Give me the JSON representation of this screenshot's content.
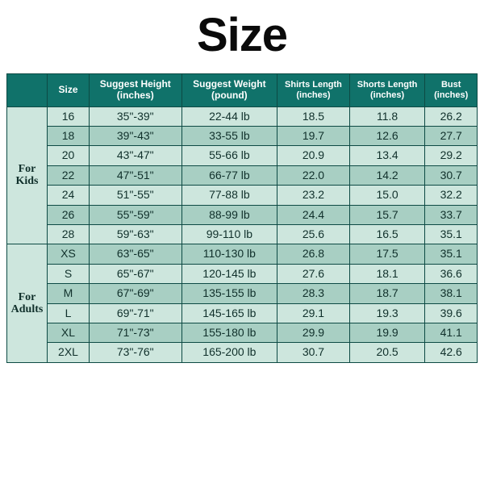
{
  "title": "Size",
  "title_fontsize": 58,
  "title_color": "#0a0a0a",
  "colors": {
    "header_bg": "#10726a",
    "header_text": "#ffffff",
    "row_a": "#cde6dd",
    "row_b": "#a8cfc3",
    "border": "#0d4a44",
    "group_bg": "#cde6dd",
    "text": "#10302b"
  },
  "fontsize": {
    "header": 12,
    "header_small": 11,
    "body": 14,
    "group": 14
  },
  "columns": [
    {
      "label_line1": "Size",
      "label_line2": ""
    },
    {
      "label_line1": "Suggest Height",
      "label_line2": "(inches)"
    },
    {
      "label_line1": "Suggest Weight",
      "label_line2": "(pound)"
    },
    {
      "label_line1": "Shirts Length",
      "label_line2": "(inches)"
    },
    {
      "label_line1": "Shorts Length",
      "label_line2": "(inches)"
    },
    {
      "label_line1": "Bust",
      "label_line2": "(inches)"
    }
  ],
  "groups": [
    {
      "label_line1": "For",
      "label_line2": "Kids",
      "rows": [
        {
          "size": "16",
          "height": "35\"-39\"",
          "weight": "22-44 lb",
          "shirts": "18.5",
          "shorts": "11.8",
          "bust": "26.2"
        },
        {
          "size": "18",
          "height": "39\"-43\"",
          "weight": "33-55 lb",
          "shirts": "19.7",
          "shorts": "12.6",
          "bust": "27.7"
        },
        {
          "size": "20",
          "height": "43\"-47\"",
          "weight": "55-66 lb",
          "shirts": "20.9",
          "shorts": "13.4",
          "bust": "29.2"
        },
        {
          "size": "22",
          "height": "47\"-51\"",
          "weight": "66-77 lb",
          "shirts": "22.0",
          "shorts": "14.2",
          "bust": "30.7"
        },
        {
          "size": "24",
          "height": "51\"-55\"",
          "weight": "77-88 lb",
          "shirts": "23.2",
          "shorts": "15.0",
          "bust": "32.2"
        },
        {
          "size": "26",
          "height": "55\"-59\"",
          "weight": "88-99 lb",
          "shirts": "24.4",
          "shorts": "15.7",
          "bust": "33.7"
        },
        {
          "size": "28",
          "height": "59\"-63\"",
          "weight": "99-110 lb",
          "shirts": "25.6",
          "shorts": "16.5",
          "bust": "35.1"
        }
      ]
    },
    {
      "label_line1": "For",
      "label_line2": "Adults",
      "rows": [
        {
          "size": "XS",
          "height": "63\"-65\"",
          "weight": "110-130 lb",
          "shirts": "26.8",
          "shorts": "17.5",
          "bust": "35.1"
        },
        {
          "size": "S",
          "height": "65\"-67\"",
          "weight": "120-145 lb",
          "shirts": "27.6",
          "shorts": "18.1",
          "bust": "36.6"
        },
        {
          "size": "M",
          "height": "67\"-69\"",
          "weight": "135-155 lb",
          "shirts": "28.3",
          "shorts": "18.7",
          "bust": "38.1"
        },
        {
          "size": "L",
          "height": "69\"-71\"",
          "weight": "145-165 lb",
          "shirts": "29.1",
          "shorts": "19.3",
          "bust": "39.6"
        },
        {
          "size": "XL",
          "height": "71\"-73\"",
          "weight": "155-180 lb",
          "shirts": "29.9",
          "shorts": "19.9",
          "bust": "41.1"
        },
        {
          "size": "2XL",
          "height": "73\"-76\"",
          "weight": "165-200 lb",
          "shirts": "30.7",
          "shorts": "20.5",
          "bust": "42.6"
        }
      ]
    }
  ]
}
